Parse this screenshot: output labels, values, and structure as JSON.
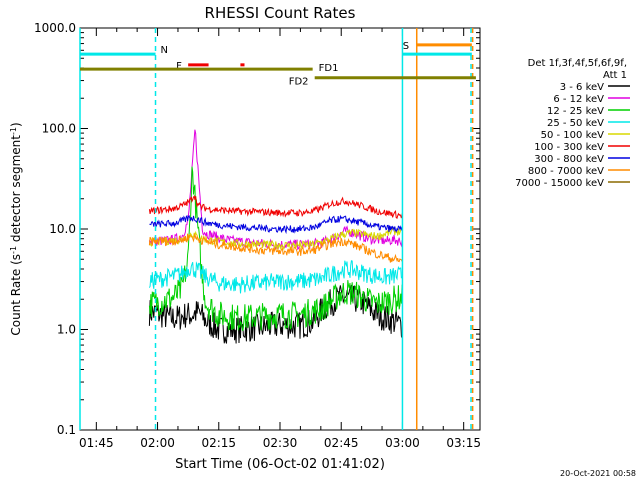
{
  "chart_data": {
    "type": "line",
    "title": "RHESSI Count Rates",
    "xlabel": "Start Time (06-Oct-02 01:41:02)",
    "ylabel_parts": [
      "Count Rate (s",
      "-1",
      " detector segment",
      "-1",
      ")"
    ],
    "yscale": "log",
    "ylim": [
      0.1,
      1000
    ],
    "xlim_minutes": [
      101,
      199
    ],
    "x_ticks": [
      {
        "value": 105,
        "label": "01:45"
      },
      {
        "value": 120,
        "label": "02:00"
      },
      {
        "value": 135,
        "label": "02:15"
      },
      {
        "value": 150,
        "label": "02:30"
      },
      {
        "value": 165,
        "label": "02:45"
      },
      {
        "value": 180,
        "label": "03:00"
      },
      {
        "value": 195,
        "label": "03:15"
      }
    ],
    "y_ticks": [
      {
        "value": 0.1,
        "label": "0.1"
      },
      {
        "value": 1,
        "label": "1.0"
      },
      {
        "value": 10,
        "label": "10.0"
      },
      {
        "value": 100,
        "label": "100.0"
      },
      {
        "value": 1000,
        "label": "1000.0"
      }
    ],
    "legend": {
      "header": [
        "Det 1f,3f,4f,5f,6f,9f,",
        "Att 1"
      ],
      "placement": "right"
    },
    "series": [
      {
        "name": "3 - 6 keV",
        "color": "#000000",
        "x": [
          118,
          121,
          123,
          125,
          127,
          128.5,
          130,
          132,
          135,
          140,
          145,
          150,
          155,
          158,
          160,
          162,
          164,
          166,
          168,
          170,
          172,
          174,
          176,
          178,
          180
        ],
        "y": [
          1.5,
          1.4,
          1.3,
          1.3,
          1.4,
          1.4,
          1.5,
          1.2,
          1.0,
          1.0,
          1.05,
          1.1,
          1.1,
          1.2,
          1.5,
          1.8,
          2.0,
          2.1,
          2.0,
          1.9,
          1.6,
          1.4,
          1.3,
          1.2,
          1.1
        ]
      },
      {
        "name": "6 - 12 keV",
        "color": "#e000e0",
        "x": [
          118,
          121,
          124,
          126,
          127.5,
          128.5,
          129.2,
          130,
          131,
          132,
          134,
          137,
          140,
          145,
          150,
          155,
          160,
          164,
          166,
          168,
          170,
          172,
          174,
          176,
          178,
          180
        ],
        "y": [
          7.5,
          7.6,
          7.8,
          8.5,
          12,
          40,
          100,
          35,
          10,
          9,
          8.5,
          7.8,
          7.5,
          7.2,
          7.0,
          7.0,
          7.2,
          8.5,
          9.5,
          9.2,
          8.5,
          8.0,
          7.8,
          7.6,
          7.8,
          7.5
        ]
      },
      {
        "name": "12 - 25 keV",
        "color": "#00d000",
        "x": [
          118,
          121,
          124,
          126,
          127.5,
          128.5,
          129.5,
          131,
          132,
          135,
          140,
          145,
          150,
          155,
          160,
          163,
          166,
          168,
          170,
          172,
          174,
          176,
          178,
          180
        ],
        "y": [
          1.8,
          1.9,
          2.1,
          2.5,
          5,
          40,
          15,
          3,
          1.8,
          1.4,
          1.3,
          1.35,
          1.4,
          1.4,
          1.6,
          2.0,
          2.4,
          2.3,
          2.1,
          1.9,
          1.8,
          1.9,
          2.0,
          2.1
        ]
      },
      {
        "name": "25 - 50 keV",
        "color": "#00e8e8",
        "x": [
          118,
          121,
          124,
          126,
          128,
          130,
          132,
          135,
          140,
          145,
          150,
          155,
          160,
          163,
          166,
          168,
          170,
          172,
          174,
          176,
          178,
          180
        ],
        "y": [
          3.0,
          3.2,
          3.4,
          3.6,
          4.2,
          3.8,
          3.3,
          2.9,
          2.8,
          2.9,
          3.0,
          3.0,
          3.2,
          3.6,
          4.0,
          3.9,
          3.7,
          3.5,
          3.4,
          3.3,
          3.4,
          3.5
        ]
      },
      {
        "name": "50 - 100 keV",
        "color": "#d8d800",
        "x": [
          118,
          122,
          126,
          128.5,
          130,
          134,
          138,
          142,
          146,
          150,
          154,
          158,
          162,
          165,
          168,
          170,
          172,
          174,
          176,
          178,
          180
        ],
        "y": [
          7.4,
          7.6,
          7.8,
          9,
          8.2,
          7.6,
          7.2,
          7.1,
          7.0,
          6.9,
          6.9,
          7.0,
          7.8,
          8.8,
          9.2,
          8.9,
          8.6,
          8.5,
          9.0,
          9.5,
          9.3
        ]
      },
      {
        "name": "100 - 300 keV",
        "color": "#f00000",
        "x": [
          118,
          121,
          124,
          126,
          128,
          129,
          130,
          132,
          135,
          140,
          145,
          150,
          155,
          158,
          160,
          162,
          164,
          166,
          168,
          170,
          172,
          174,
          176,
          178,
          180
        ],
        "y": [
          15,
          15.5,
          16,
          17,
          19,
          22,
          17,
          16,
          15.5,
          15,
          14.8,
          14.5,
          14.5,
          15,
          16,
          17.5,
          18.5,
          19,
          18,
          17,
          16,
          15,
          14.5,
          14,
          13.5
        ]
      },
      {
        "name": "300 - 800 keV",
        "color": "#0000e0",
        "x": [
          118,
          121,
          124,
          126,
          128,
          130,
          132,
          135,
          140,
          145,
          150,
          155,
          158,
          160,
          162,
          164,
          166,
          168,
          170,
          172,
          174,
          176,
          178,
          180
        ],
        "y": [
          11,
          11.2,
          11.4,
          12,
          13,
          12.5,
          11.5,
          11,
          10.5,
          10.2,
          10,
          10,
          10.3,
          11,
          12,
          12.5,
          12.5,
          12,
          11.5,
          11,
          10.5,
          10.2,
          10,
          9.8
        ]
      },
      {
        "name": "800 - 7000 keV",
        "color": "#ff8c00",
        "x": [
          118,
          121,
          124,
          126,
          128,
          130,
          132,
          135,
          140,
          145,
          150,
          155,
          158,
          160,
          162,
          164,
          166,
          168,
          170,
          172,
          174,
          176,
          178,
          180
        ],
        "y": [
          7.5,
          7.6,
          7.6,
          7.8,
          8.5,
          8.0,
          7.5,
          7.0,
          6.6,
          6.2,
          6.0,
          6.0,
          6.1,
          6.6,
          7.0,
          7.4,
          7.6,
          7.0,
          6.5,
          6.0,
          5.6,
          5.3,
          5.0,
          4.8
        ]
      },
      {
        "name": "7000 - 15000 keV",
        "color": "#8b6a00",
        "x": [],
        "y": []
      }
    ],
    "noise": {
      "3 - 6 keV": 0.14,
      "6 - 12 keV": 0.05,
      "12 - 25 keV": 0.14,
      "25 - 50 keV": 0.09,
      "50 - 100 keV": 0.04,
      "100 - 300 keV": 0.035,
      "300 - 800 keV": 0.035,
      "800 - 7000 keV": 0.045
    },
    "annotations": {
      "night": [
        {
          "label": "N",
          "start": 101,
          "end": 119.5,
          "y": 550,
          "color": "#00e8e8"
        },
        {
          "label": "",
          "start": 180,
          "end": 197,
          "y": 550,
          "color": "#00e8e8"
        }
      ],
      "flare": {
        "label": "F",
        "color": "#f00000",
        "y": 430,
        "segments": [
          [
            127.5,
            132.5
          ],
          [
            140.3,
            141.3
          ]
        ]
      },
      "saa": {
        "label": "S",
        "start": 183.5,
        "end": 197,
        "y": 680,
        "color": "#ff8c00"
      },
      "fd1": {
        "label": "FD1",
        "start": 101,
        "end": 158,
        "y": 390,
        "color": "#808000"
      },
      "fd2": {
        "label": "FD2",
        "start": 158.5,
        "end": 198,
        "y": 320,
        "color": "#808000"
      },
      "vlines": [
        {
          "x": 101,
          "color": "#00e8e8",
          "dashed": false
        },
        {
          "x": 119.5,
          "color": "#00e8e8",
          "dashed": true
        },
        {
          "x": 180,
          "color": "#00e8e8",
          "dashed": false
        },
        {
          "x": 183.5,
          "color": "#ff8c00",
          "dashed": false
        },
        {
          "x": 196.8,
          "color": "#00e8e8",
          "dashed": true
        },
        {
          "x": 197.2,
          "color": "#ff8c00",
          "dashed": true
        }
      ]
    },
    "timestamp": "20-Oct-2021 00:58"
  }
}
